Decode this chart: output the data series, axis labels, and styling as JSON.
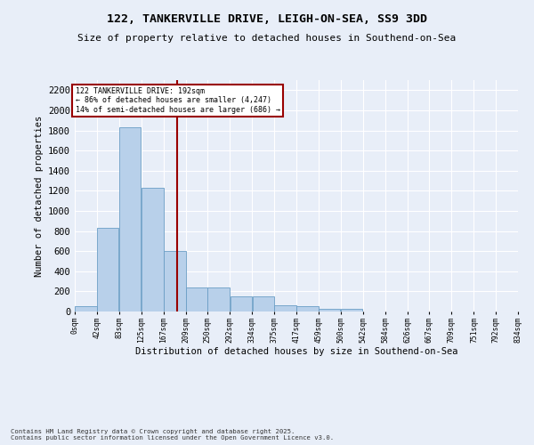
{
  "title_line1": "122, TANKERVILLE DRIVE, LEIGH-ON-SEA, SS9 3DD",
  "title_line2": "Size of property relative to detached houses in Southend-on-Sea",
  "xlabel": "Distribution of detached houses by size in Southend-on-Sea",
  "ylabel": "Number of detached properties",
  "footer_line1": "Contains HM Land Registry data © Crown copyright and database right 2025.",
  "footer_line2": "Contains public sector information licensed under the Open Government Licence v3.0.",
  "annotation_line1": "122 TANKERVILLE DRIVE: 192sqm",
  "annotation_line2": "← 86% of detached houses are smaller (4,247)",
  "annotation_line3": "14% of semi-detached houses are larger (686) →",
  "property_size": 192,
  "bin_edges": [
    0,
    42,
    83,
    125,
    167,
    209,
    250,
    292,
    334,
    375,
    417,
    459,
    500,
    542,
    584,
    626,
    667,
    709,
    751,
    792,
    834
  ],
  "bar_heights": [
    50,
    830,
    1830,
    1230,
    600,
    240,
    240,
    150,
    150,
    60,
    55,
    30,
    25,
    0,
    0,
    0,
    0,
    0,
    0,
    0
  ],
  "bar_color": "#b8d0ea",
  "bar_edge_color": "#6a9ec5",
  "vline_color": "#990000",
  "vline_x": 192,
  "annotation_box_color": "#990000",
  "background_color": "#e8eef8",
  "plot_bg_color": "#e8eef8",
  "ylim": [
    0,
    2300
  ],
  "yticks": [
    0,
    200,
    400,
    600,
    800,
    1000,
    1200,
    1400,
    1600,
    1800,
    2000,
    2200
  ],
  "grid_color": "#ffffff",
  "tick_labels": [
    "0sqm",
    "42sqm",
    "83sqm",
    "125sqm",
    "167sqm",
    "209sqm",
    "250sqm",
    "292sqm",
    "334sqm",
    "375sqm",
    "417sqm",
    "459sqm",
    "500sqm",
    "542sqm",
    "584sqm",
    "626sqm",
    "667sqm",
    "709sqm",
    "751sqm",
    "792sqm",
    "834sqm"
  ]
}
